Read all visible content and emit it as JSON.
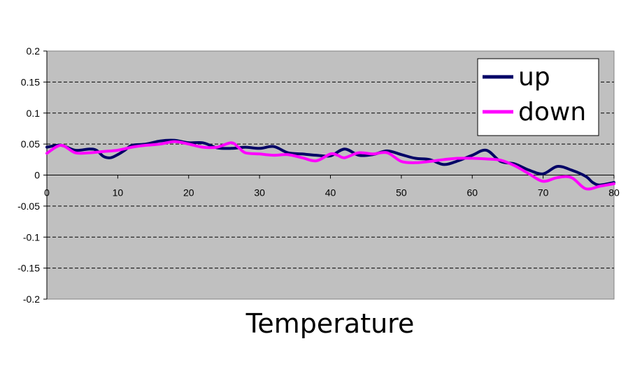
{
  "chart_data": {
    "type": "line",
    "title": "",
    "xlabel": "Temperature",
    "ylabel": "",
    "xlim": [
      0,
      80
    ],
    "ylim": [
      -0.2,
      0.2
    ],
    "x_ticks": [
      "0",
      "10",
      "20",
      "30",
      "40",
      "50",
      "60",
      "70",
      "80"
    ],
    "y_ticks": [
      "0.2",
      "0.15",
      "0.1",
      "0.05",
      "0",
      "-0.05",
      "-0.1",
      "-0.15",
      "-0.2"
    ],
    "grid": "horizontal-dashed",
    "legend_position": "top-right",
    "plot_background": "#c0c0c0",
    "series": [
      {
        "name": "up",
        "color": "#000066",
        "x": [
          0,
          2,
          4,
          6,
          7,
          8,
          9,
          10,
          11,
          12,
          14,
          16,
          18,
          20,
          22,
          24,
          26,
          28,
          30,
          32,
          34,
          36,
          38,
          40,
          42,
          44,
          46,
          48,
          50,
          52,
          54,
          56,
          58,
          60,
          62,
          64,
          66,
          68,
          70,
          72,
          74,
          76,
          77,
          78,
          80
        ],
        "y": [
          0.045,
          0.048,
          0.04,
          0.042,
          0.04,
          0.03,
          0.028,
          0.033,
          0.04,
          0.048,
          0.05,
          0.055,
          0.056,
          0.052,
          0.052,
          0.044,
          0.043,
          0.045,
          0.043,
          0.046,
          0.036,
          0.034,
          0.032,
          0.031,
          0.042,
          0.032,
          0.033,
          0.039,
          0.033,
          0.027,
          0.025,
          0.017,
          0.023,
          0.032,
          0.04,
          0.022,
          0.018,
          0.008,
          0.002,
          0.014,
          0.008,
          -0.002,
          -0.012,
          -0.016,
          -0.012
        ]
      },
      {
        "name": "down",
        "color": "#ff00ff",
        "x": [
          0,
          2,
          4,
          6,
          8,
          10,
          12,
          14,
          16,
          18,
          20,
          22,
          24,
          26,
          27,
          28,
          30,
          32,
          34,
          36,
          38,
          40,
          41,
          42,
          44,
          46,
          48,
          50,
          52,
          54,
          56,
          58,
          60,
          62,
          64,
          66,
          68,
          70,
          72,
          74,
          76,
          78,
          80
        ],
        "y": [
          0.035,
          0.048,
          0.036,
          0.036,
          0.038,
          0.04,
          0.045,
          0.048,
          0.05,
          0.054,
          0.05,
          0.045,
          0.045,
          0.052,
          0.045,
          0.036,
          0.034,
          0.032,
          0.033,
          0.028,
          0.023,
          0.034,
          0.032,
          0.028,
          0.036,
          0.034,
          0.036,
          0.022,
          0.02,
          0.022,
          0.025,
          0.027,
          0.027,
          0.026,
          0.024,
          0.015,
          0.002,
          -0.01,
          -0.004,
          -0.004,
          -0.022,
          -0.018,
          -0.014
        ]
      }
    ]
  }
}
